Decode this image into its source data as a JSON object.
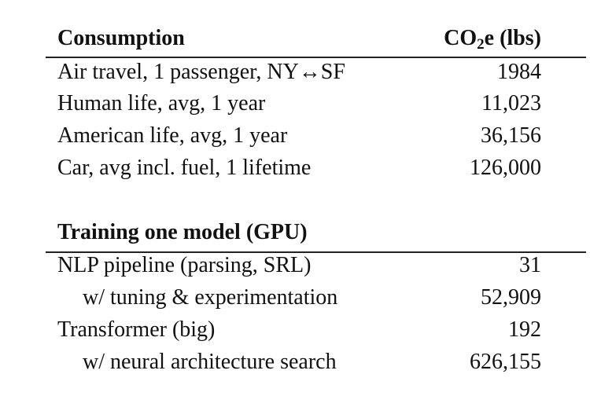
{
  "sections": [
    {
      "header": {
        "label": "Consumption",
        "unit": {
          "prefix": "CO",
          "sub": "2",
          "suffix": "e (lbs)"
        }
      },
      "rows": [
        [
          "Air travel, 1 passenger, NY↔SF",
          "1984"
        ],
        [
          "Human life, avg, 1 year",
          "11,023"
        ],
        [
          "American life, avg, 1 year",
          "36,156"
        ],
        [
          "Car, avg incl. fuel, 1 lifetime",
          "126,000"
        ]
      ]
    },
    {
      "header": {
        "label": "Training one model (GPU)"
      },
      "rows": [
        [
          "NLP pipeline (parsing, SRL)",
          "31"
        ],
        [
          "w/ tuning & experimentation",
          "52,909"
        ],
        [
          "Transformer (big)",
          "192"
        ],
        [
          "w/ neural architecture search",
          "626,155"
        ]
      ]
    }
  ]
}
